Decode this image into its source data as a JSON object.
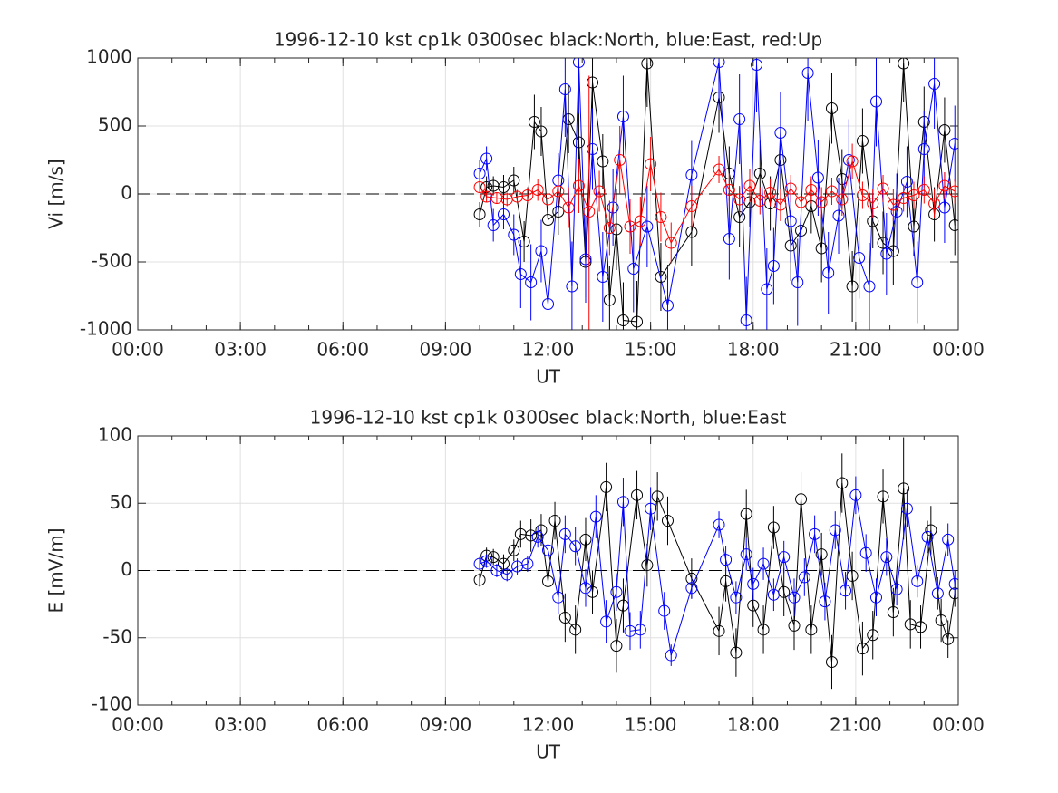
{
  "chart_data": [
    {
      "type": "line",
      "title": "1996-12-10 kst cp1k 0300sec black:North, blue:East, red:Up",
      "xlabel": "UT",
      "ylabel": "Vi [m/s]",
      "xlim": [
        0,
        24
      ],
      "xticks": [
        {
          "value": 0,
          "label": "00:00"
        },
        {
          "value": 3,
          "label": "03:00"
        },
        {
          "value": 6,
          "label": "06:00"
        },
        {
          "value": 9,
          "label": "09:00"
        },
        {
          "value": 12,
          "label": "12:00"
        },
        {
          "value": 15,
          "label": "15:00"
        },
        {
          "value": 18,
          "label": "18:00"
        },
        {
          "value": 21,
          "label": "21:00"
        },
        {
          "value": 24,
          "label": "00:00"
        }
      ],
      "ylim": [
        -1000,
        1000
      ],
      "yticks": [
        1000,
        500,
        0,
        -500,
        -1000
      ],
      "grid": true,
      "series": [
        {
          "color": "#000000",
          "x": [
            10.0,
            10.2,
            10.4,
            10.7,
            11.0,
            11.3,
            11.6,
            11.8,
            12.0,
            12.3,
            12.6,
            12.9,
            13.1,
            13.3,
            13.6,
            13.8,
            14.0,
            14.2,
            14.6,
            14.9,
            15.3,
            16.2,
            17.0,
            17.3,
            17.6,
            17.9,
            18.2,
            18.5,
            18.8,
            19.1,
            19.4,
            19.7,
            20.0,
            20.3,
            20.6,
            20.9,
            21.2,
            21.5,
            21.8,
            22.1,
            22.4,
            22.7,
            23.0,
            23.3,
            23.6,
            23.9
          ],
          "values": [
            -150,
            50,
            60,
            50,
            100,
            -350,
            530,
            460,
            -190,
            -130,
            550,
            380,
            -500,
            820,
            240,
            -780,
            -260,
            -930,
            -940,
            960,
            -610,
            -280,
            710,
            150,
            -170,
            -60,
            150,
            -70,
            250,
            -380,
            -270,
            -90,
            -400,
            630,
            110,
            -680,
            390,
            -200,
            -360,
            -420,
            960,
            -240,
            530,
            -150,
            470,
            -230
          ],
          "errors": [
            90,
            80,
            70,
            90,
            100,
            150,
            200,
            180,
            150,
            170,
            250,
            220,
            260,
            300,
            200,
            250,
            300,
            280,
            300,
            320,
            250,
            250,
            260,
            200,
            220,
            180,
            240,
            200,
            220,
            260,
            240,
            200,
            250,
            260,
            220,
            260,
            240,
            200,
            230,
            250,
            280,
            220,
            260,
            200,
            240,
            220
          ]
        },
        {
          "color": "#0000ff",
          "x": [
            10.0,
            10.2,
            10.4,
            10.7,
            11.0,
            11.2,
            11.5,
            11.8,
            12.0,
            12.3,
            12.5,
            12.7,
            12.9,
            13.1,
            13.3,
            13.6,
            13.9,
            14.2,
            14.5,
            14.9,
            15.5,
            16.2,
            17.0,
            17.3,
            17.6,
            17.8,
            18.1,
            18.4,
            18.6,
            18.8,
            19.1,
            19.3,
            19.6,
            19.9,
            20.2,
            20.5,
            20.8,
            21.1,
            21.4,
            21.6,
            21.9,
            22.2,
            22.5,
            22.8,
            23.0,
            23.3,
            23.6,
            23.9
          ],
          "values": [
            150,
            260,
            -230,
            -150,
            -300,
            -590,
            -650,
            -420,
            -810,
            100,
            770,
            -680,
            970,
            -480,
            330,
            -610,
            -100,
            570,
            -550,
            -240,
            -820,
            140,
            970,
            -330,
            550,
            -930,
            950,
            -700,
            -530,
            450,
            -200,
            -650,
            890,
            120,
            -580,
            -160,
            250,
            -470,
            -680,
            680,
            -440,
            -130,
            90,
            -650,
            330,
            810,
            -100,
            370
          ],
          "errors": [
            100,
            90,
            120,
            110,
            150,
            250,
            280,
            230,
            300,
            200,
            350,
            330,
            380,
            320,
            300,
            330,
            280,
            300,
            320,
            300,
            300,
            250,
            350,
            300,
            330,
            320,
            350,
            300,
            280,
            300,
            300,
            320,
            350,
            280,
            300,
            280,
            300,
            300,
            320,
            330,
            300,
            280,
            260,
            300,
            280,
            330,
            260,
            280
          ]
        },
        {
          "color": "#ff0000",
          "x": [
            10.0,
            10.2,
            10.5,
            10.8,
            11.1,
            11.4,
            11.7,
            12.0,
            12.3,
            12.6,
            12.9,
            13.2,
            13.5,
            13.8,
            14.1,
            14.4,
            14.7,
            15.0,
            15.3,
            15.6,
            16.2,
            17.0,
            17.3,
            17.6,
            17.9,
            18.2,
            18.5,
            18.8,
            19.1,
            19.4,
            19.7,
            20.0,
            20.3,
            20.6,
            20.9,
            21.2,
            21.5,
            21.8,
            22.1,
            22.4,
            22.7,
            23.0,
            23.3,
            23.6,
            23.9
          ],
          "values": [
            50,
            -20,
            -30,
            -40,
            -20,
            -10,
            30,
            -40,
            20,
            -100,
            60,
            -130,
            20,
            -250,
            250,
            -240,
            -200,
            220,
            -170,
            -360,
            -90,
            180,
            30,
            -40,
            60,
            -50,
            10,
            -80,
            40,
            -60,
            30,
            -60,
            20,
            -40,
            240,
            -10,
            -70,
            40,
            -80,
            -30,
            -10,
            30,
            -70,
            60,
            20
          ],
          "errors": [
            40,
            40,
            40,
            50,
            50,
            60,
            80,
            90,
            100,
            150,
            200,
            1000,
            150,
            200,
            250,
            200,
            180,
            200,
            180,
            150,
            150,
            100,
            120,
            100,
            120,
            100,
            100,
            120,
            100,
            120,
            100,
            110,
            100,
            120,
            130,
            100,
            110,
            100,
            120,
            100,
            100,
            100,
            110,
            100,
            90
          ]
        }
      ]
    },
    {
      "type": "line",
      "title": "1996-12-10 kst cp1k 0300sec black:North, blue:East",
      "xlabel": "UT",
      "ylabel": "E [mV/m]",
      "xlim": [
        0,
        24
      ],
      "xticks": [
        {
          "value": 0,
          "label": "00:00"
        },
        {
          "value": 3,
          "label": "03:00"
        },
        {
          "value": 6,
          "label": "06:00"
        },
        {
          "value": 9,
          "label": "09:00"
        },
        {
          "value": 12,
          "label": "12:00"
        },
        {
          "value": 15,
          "label": "15:00"
        },
        {
          "value": 18,
          "label": "18:00"
        },
        {
          "value": 21,
          "label": "21:00"
        },
        {
          "value": 24,
          "label": "00:00"
        }
      ],
      "ylim": [
        -100,
        100
      ],
      "yticks": [
        100,
        50,
        0,
        -50,
        -100
      ],
      "grid": true,
      "series": [
        {
          "color": "#000000",
          "x": [
            10.0,
            10.2,
            10.4,
            10.7,
            11.0,
            11.2,
            11.5,
            11.8,
            12.0,
            12.2,
            12.5,
            12.8,
            13.1,
            13.3,
            13.7,
            14.0,
            14.2,
            14.6,
            14.9,
            15.2,
            15.5,
            16.2,
            17.0,
            17.2,
            17.5,
            17.8,
            18.0,
            18.3,
            18.6,
            18.9,
            19.2,
            19.4,
            19.7,
            20.0,
            20.3,
            20.6,
            20.9,
            21.2,
            21.5,
            21.8,
            22.1,
            22.4,
            22.6,
            22.9,
            23.2,
            23.5,
            23.7,
            23.9
          ],
          "values": [
            -7,
            11,
            10,
            5,
            15,
            27,
            26,
            30,
            -8,
            37,
            -35,
            -44,
            23,
            -16,
            62,
            -56,
            -26,
            56,
            4,
            55,
            37,
            -6,
            -45,
            -8,
            -61,
            42,
            -26,
            -44,
            32,
            -16,
            -41,
            53,
            -44,
            12,
            -68,
            65,
            -4,
            -58,
            -48,
            55,
            -31,
            61,
            -40,
            -42,
            30,
            -37,
            -51,
            -17
          ],
          "errors": [
            5,
            6,
            6,
            7,
            8,
            10,
            12,
            12,
            12,
            14,
            18,
            18,
            16,
            16,
            18,
            20,
            20,
            18,
            16,
            18,
            18,
            15,
            18,
            15,
            18,
            18,
            16,
            18,
            16,
            18,
            18,
            20,
            18,
            16,
            20,
            22,
            18,
            20,
            18,
            20,
            18,
            38,
            18,
            16,
            18,
            16,
            14,
            10
          ]
        },
        {
          "color": "#0000ff",
          "x": [
            10.0,
            10.2,
            10.5,
            10.8,
            11.1,
            11.4,
            11.7,
            12.0,
            12.3,
            12.5,
            12.8,
            13.1,
            13.4,
            13.7,
            14.0,
            14.2,
            14.4,
            14.7,
            15.0,
            15.4,
            15.6,
            16.2,
            17.0,
            17.2,
            17.5,
            17.8,
            18.0,
            18.3,
            18.6,
            18.9,
            19.2,
            19.5,
            19.8,
            20.1,
            20.4,
            20.7,
            21.0,
            21.3,
            21.6,
            21.9,
            22.2,
            22.5,
            22.8,
            23.1,
            23.4,
            23.7,
            23.9
          ],
          "values": [
            5,
            7,
            0,
            -3,
            3,
            5,
            25,
            15,
            -20,
            27,
            18,
            -13,
            40,
            -38,
            -16,
            51,
            -45,
            -44,
            46,
            -30,
            -63,
            -13,
            34,
            8,
            -20,
            12,
            -10,
            5,
            -18,
            10,
            -20,
            -5,
            27,
            -23,
            30,
            -15,
            56,
            13,
            -20,
            10,
            -14,
            46,
            -8,
            25,
            -17,
            23,
            -10
          ],
          "errors": [
            5,
            5,
            5,
            5,
            6,
            6,
            8,
            10,
            12,
            14,
            14,
            14,
            16,
            16,
            14,
            18,
            14,
            14,
            16,
            14,
            8,
            8,
            10,
            10,
            12,
            12,
            12,
            12,
            12,
            12,
            14,
            14,
            14,
            14,
            14,
            14,
            14,
            14,
            14,
            14,
            12,
            14,
            12,
            12,
            12,
            12,
            10
          ]
        }
      ]
    }
  ]
}
